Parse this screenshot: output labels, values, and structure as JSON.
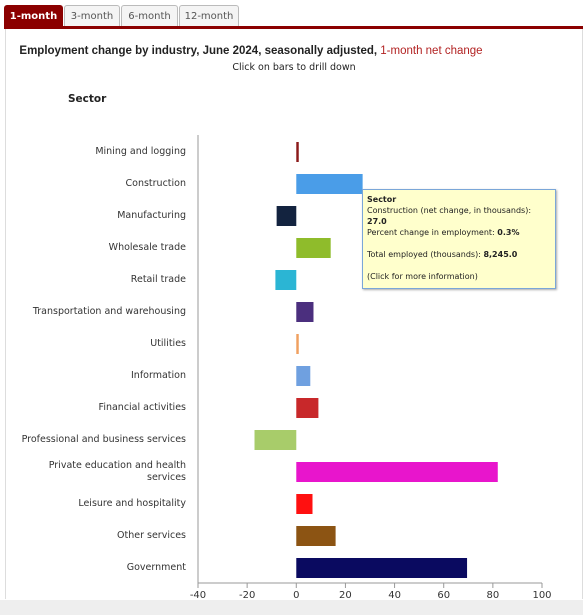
{
  "tabs": [
    "1-month",
    "3-month",
    "6-month",
    "12-month"
  ],
  "chart_data": {
    "type": "bar",
    "orientation": "horizontal",
    "title": "Employment change by industry, June 2024, seasonally adjusted, ",
    "title_highlight": "1-month net change",
    "subtitle": "Click on bars to drill down",
    "category_axis_label": "Sector",
    "categories": [
      "Mining and logging",
      "Construction",
      "Manufacturing",
      "Wholesale trade",
      "Retail trade",
      "Transportation and warehousing",
      "Utilities",
      "Information",
      "Financial activities",
      "Professional and business services",
      "Private education and health services",
      "Leisure and hospitality",
      "Other services",
      "Government"
    ],
    "values": [
      1,
      27,
      -8,
      14,
      -8.5,
      7,
      1,
      5.7,
      9,
      -17,
      82,
      6.6,
      16,
      69.5
    ],
    "colors": [
      "#8b1a1a",
      "#4a9de8",
      "#13233f",
      "#8fbc2b",
      "#2bb5d4",
      "#4b2f7e",
      "#f0a060",
      "#6fa0e0",
      "#c8282a",
      "#a8cc6a",
      "#e815cc",
      "#ff1010",
      "#8c5413",
      "#0a0a60"
    ],
    "xlim": [
      -40,
      100
    ],
    "xticks": [
      -40,
      -20,
      0,
      20,
      40,
      60,
      80,
      100
    ]
  },
  "tooltip": {
    "heading": "Sector",
    "line1_label": "Construction (net change, in thousands): ",
    "line1_value": "27.0",
    "line2_label": "Percent change in employment: ",
    "line2_value": "0.3%",
    "line3_label": "Total employed (thousands): ",
    "line3_value": "8,245.0",
    "line4": "(Click for more information)"
  }
}
